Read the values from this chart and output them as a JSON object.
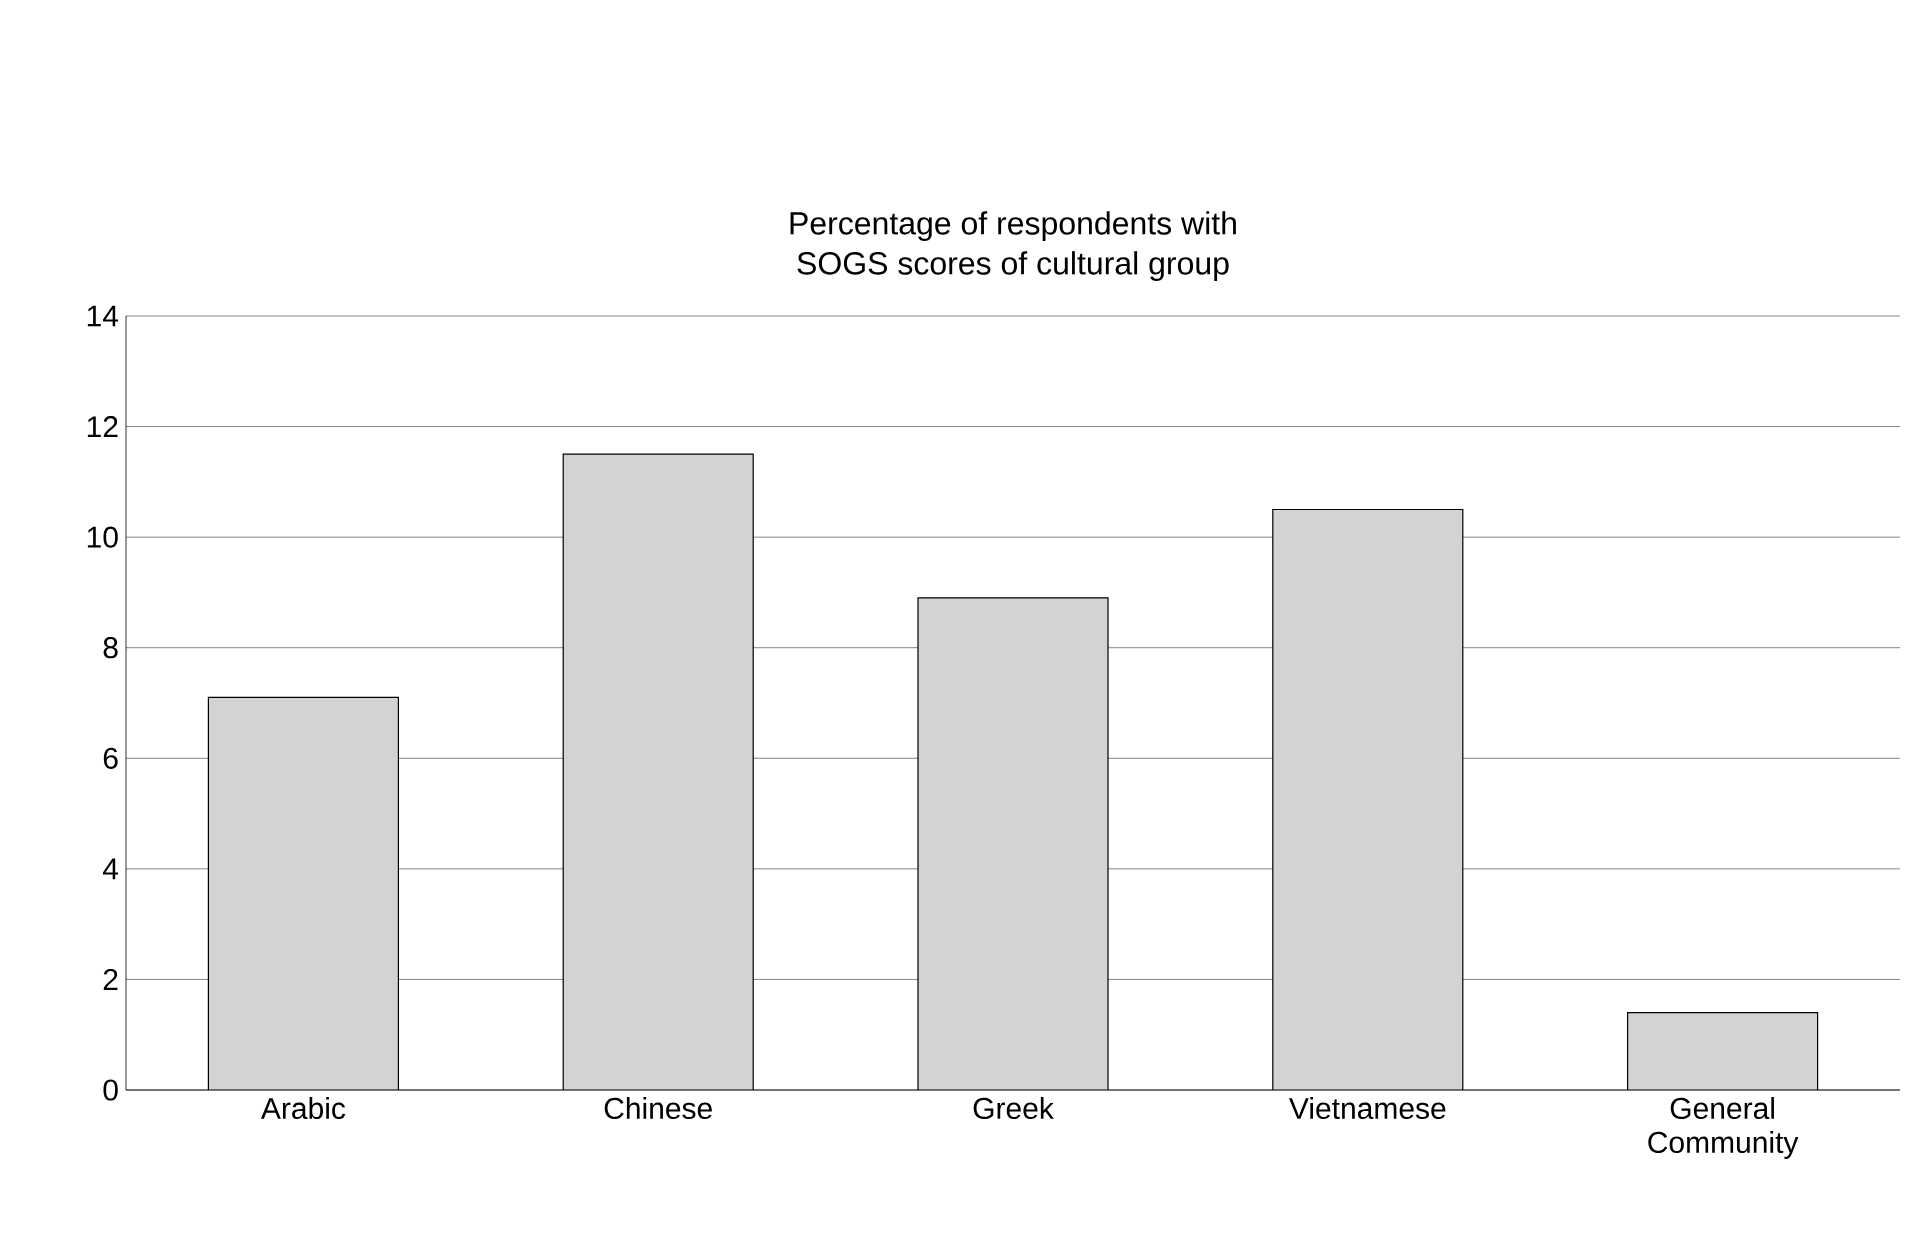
{
  "chart_data": {
    "type": "bar",
    "title": "Percentage of respondents with\nSOGS scores of cultural group",
    "categories": [
      "Arabic",
      "Chinese",
      "Greek",
      "Vietnamese",
      "General Community"
    ],
    "values": [
      7.1,
      11.5,
      8.9,
      10.5,
      1.4
    ],
    "color": "#d3d3d3",
    "ylim": [
      0,
      14
    ],
    "yticks": [
      0,
      2,
      4,
      6,
      8,
      10,
      12,
      14
    ],
    "grid": "y"
  }
}
